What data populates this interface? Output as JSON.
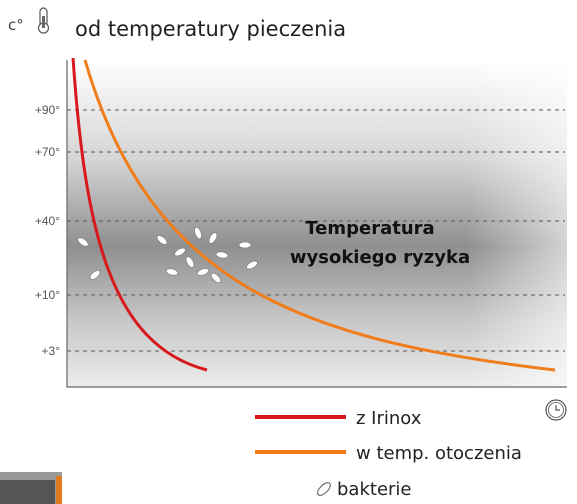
{
  "header": {
    "unit": "c°",
    "title": "od temperatury pieczenia"
  },
  "axis": {
    "ticks": [
      "+90°",
      "+70°",
      "+40°",
      "+10°",
      "+3°"
    ]
  },
  "plot": {
    "label_line1": "Temperatura",
    "label_line2": "wysokiego ryzyka"
  },
  "legend": {
    "items": [
      "z Irinox",
      "w temp. otoczenia",
      "bakterie"
    ]
  }
}
